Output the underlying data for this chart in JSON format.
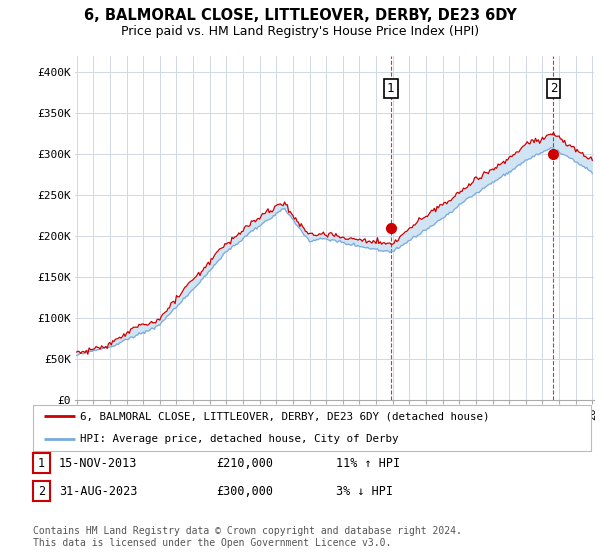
{
  "title": "6, BALMORAL CLOSE, LITTLEOVER, DERBY, DE23 6DY",
  "subtitle": "Price paid vs. HM Land Registry's House Price Index (HPI)",
  "ylim": [
    0,
    420000
  ],
  "yticks": [
    0,
    50000,
    100000,
    150000,
    200000,
    250000,
    300000,
    350000,
    400000
  ],
  "ytick_labels": [
    "£0",
    "£50K",
    "£100K",
    "£150K",
    "£200K",
    "£250K",
    "£300K",
    "£350K",
    "£400K"
  ],
  "bg_color": "#ffffff",
  "grid_color": "#d0d8e4",
  "hpi_fill_color": "#d0e4f4",
  "hpi_line_color": "#7aaadd",
  "price_color": "#cc0000",
  "marker1_year": 2013.88,
  "marker1_value": 210000,
  "marker2_year": 2023.66,
  "marker2_value": 300000,
  "legend_line1": "6, BALMORAL CLOSE, LITTLEOVER, DERBY, DE23 6DY (detached house)",
  "legend_line2": "HPI: Average price, detached house, City of Derby",
  "table_row1": [
    "1",
    "15-NOV-2013",
    "£210,000",
    "11% ↑ HPI"
  ],
  "table_row2": [
    "2",
    "31-AUG-2023",
    "£300,000",
    "3% ↓ HPI"
  ],
  "footnote": "Contains HM Land Registry data © Crown copyright and database right 2024.\nThis data is licensed under the Open Government Licence v3.0.",
  "x_start_year": 1995,
  "x_end_year": 2026
}
